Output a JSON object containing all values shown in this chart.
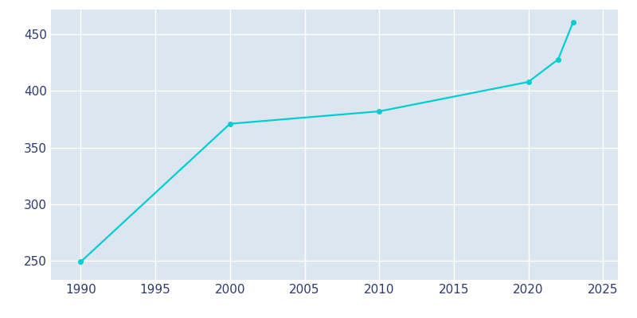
{
  "years": [
    1990,
    2000,
    2010,
    2020,
    2022,
    2023
  ],
  "population": [
    249,
    371,
    382,
    408,
    428,
    461
  ],
  "line_color": "#00CED1",
  "marker_color": "#00CED1",
  "plot_bg_color": "#dce6f0",
  "fig_bg_color": "#ffffff",
  "grid_color": "#ffffff",
  "xlim": [
    1988,
    2026
  ],
  "ylim": [
    233,
    472
  ],
  "xticks": [
    1990,
    1995,
    2000,
    2005,
    2010,
    2015,
    2020,
    2025
  ],
  "yticks": [
    250,
    300,
    350,
    400,
    450
  ],
  "tick_color": "#2d3a6b",
  "tick_fontsize": 11,
  "linewidth": 1.6,
  "markersize": 4
}
